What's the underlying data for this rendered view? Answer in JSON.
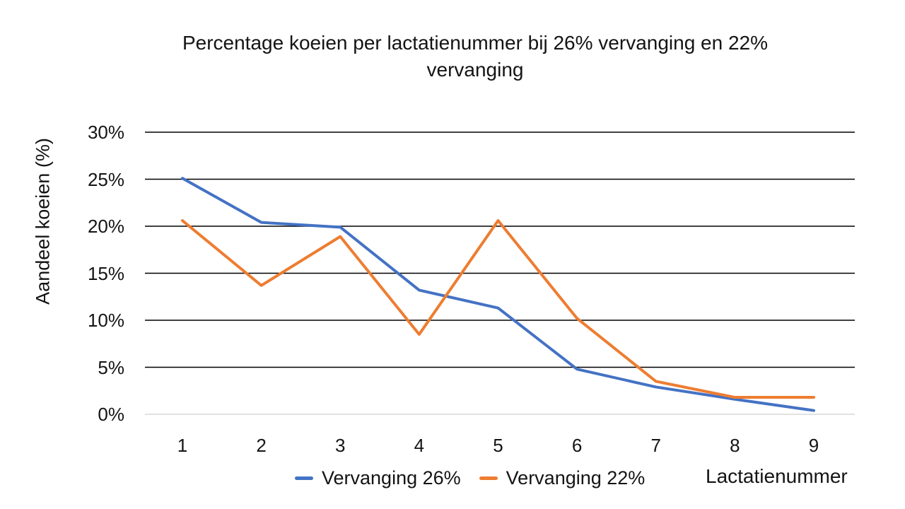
{
  "colors": {
    "series_26": "#4472C4",
    "series_22": "#ED7D31",
    "gridline": "#000000",
    "zero_line": "#D9D9D9",
    "text": "#141414",
    "background": "#FFFFFF"
  },
  "chart_data": {
    "type": "line",
    "title": "Percentage koeien per lactatienummer bij 26% vervanging en 22% vervanging",
    "title_lines": [
      "Percentage koeien per lactatienummer bij 26% vervanging en 22%",
      "vervanging"
    ],
    "xlabel": "Lactatienummer",
    "ylabel": "Aandeel koeien (%)",
    "x": [
      1,
      2,
      3,
      4,
      5,
      6,
      7,
      8,
      9
    ],
    "series": [
      {
        "name": "Vervanging 26%",
        "color": "#4472C4",
        "values": [
          25.1,
          20.4,
          19.9,
          13.2,
          11.3,
          4.8,
          2.9,
          1.6,
          0.4
        ]
      },
      {
        "name": "Vervanging 22%",
        "color": "#ED7D31",
        "values": [
          20.6,
          13.7,
          18.9,
          8.5,
          20.6,
          10.2,
          3.5,
          1.8,
          1.8
        ]
      }
    ],
    "ylim": [
      0,
      30
    ],
    "y_tick_step": 5,
    "y_tick_labels": [
      "0%",
      "5%",
      "10%",
      "15%",
      "20%",
      "25%",
      "30%"
    ],
    "grid": true,
    "legend_position": "bottom"
  }
}
